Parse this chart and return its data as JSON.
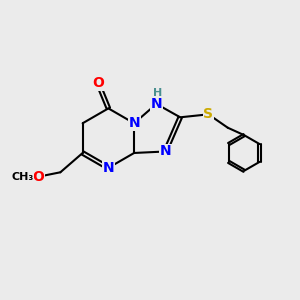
{
  "bg_color": "#ebebeb",
  "atom_colors": {
    "N": "#0000ff",
    "O": "#ff0000",
    "S": "#ccaa00",
    "H": "#4a9090"
  },
  "bond_color": "#000000",
  "bond_width": 1.5,
  "font_size_atom": 10,
  "font_size_h": 8
}
